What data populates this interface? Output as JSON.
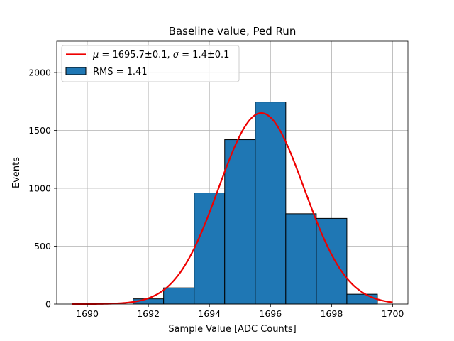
{
  "chart_data": {
    "type": "bar",
    "title": "Baseline value, Ped Run",
    "xlabel": "Sample Value [ADC Counts]",
    "ylabel": "Events",
    "xlim": [
      1689.0,
      1700.5
    ],
    "ylim": [
      0,
      2270
    ],
    "grid": true,
    "legend_position": "top-left",
    "x_ticks": [
      1690,
      1692,
      1694,
      1696,
      1698,
      1700
    ],
    "y_ticks": [
      0,
      500,
      1000,
      1500,
      2000
    ],
    "histogram": {
      "name": "RMS = 1.41",
      "color": "#1f77b4",
      "bin_edges": [
        1691.5,
        1692.5,
        1693.5,
        1694.5,
        1695.5,
        1696.5,
        1697.5,
        1698.5,
        1699.5
      ],
      "counts": [
        45,
        140,
        960,
        1420,
        1745,
        780,
        740,
        85
      ]
    },
    "fit": {
      "name_parts": [
        "μ",
        " = 1695.7±0.1, ",
        "σ",
        " = 1.4±0.1"
      ],
      "color": "#ee0000",
      "type": "gaussian",
      "mu": 1695.7,
      "sigma": 1.4,
      "amplitude": 1650,
      "x_range": [
        1689.5,
        1700.0
      ]
    }
  }
}
